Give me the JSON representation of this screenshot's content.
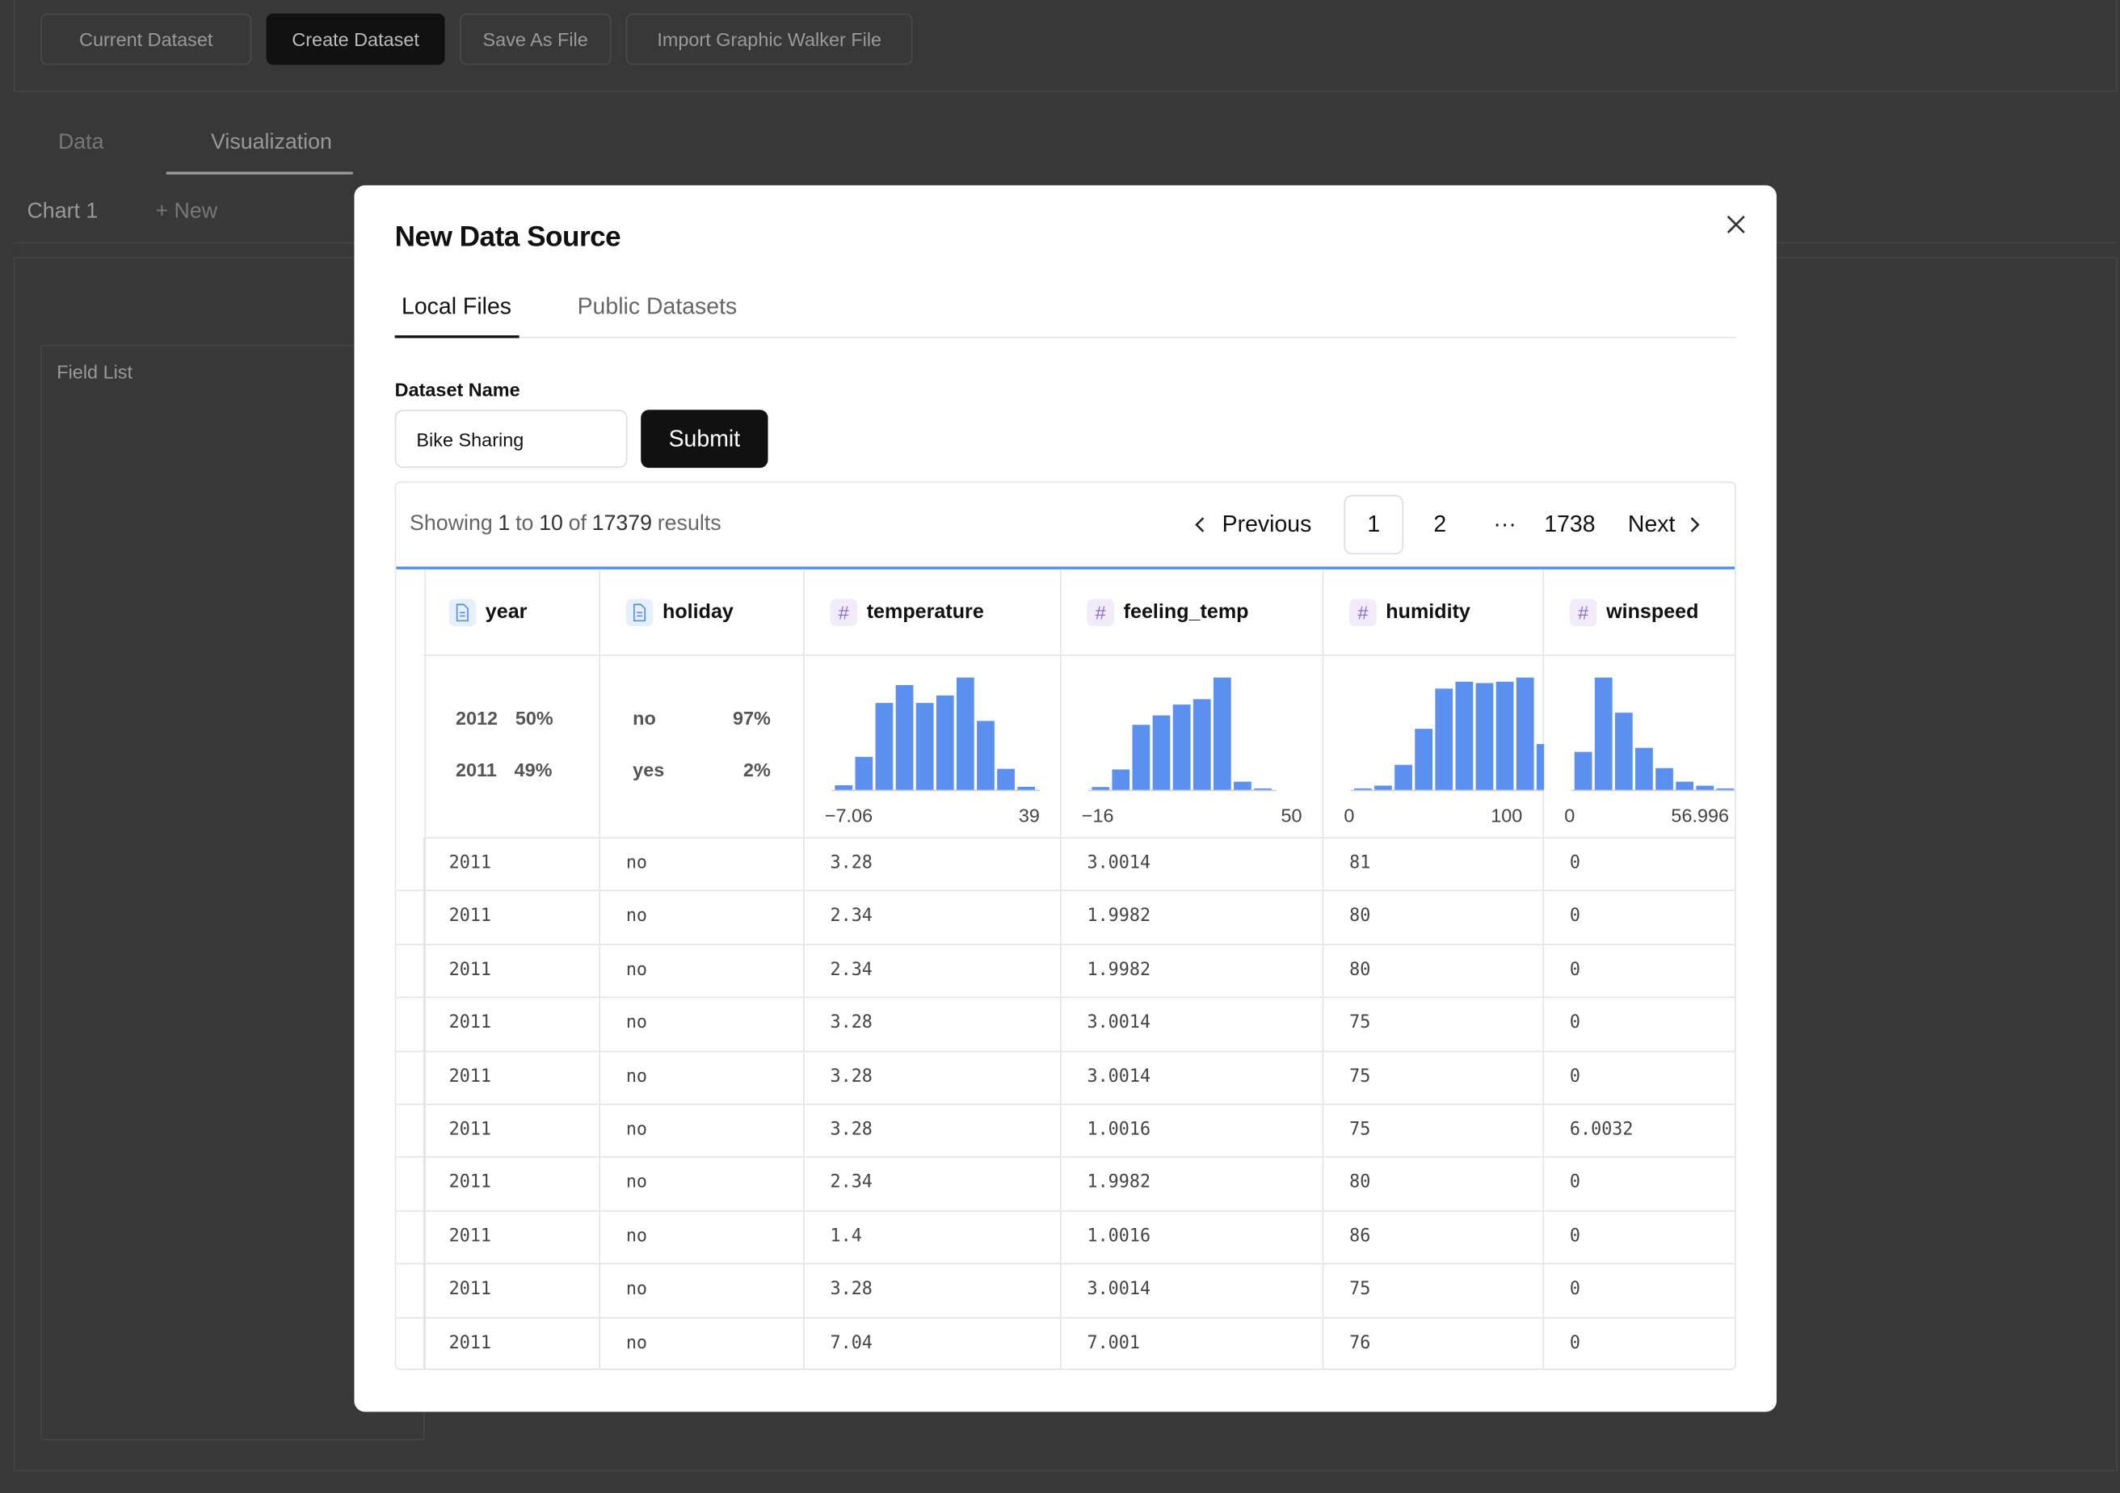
{
  "toolbar": {
    "buttons": [
      "Current Dataset",
      "Create Dataset",
      "Save As File",
      "Import Graphic Walker File"
    ]
  },
  "tabs": [
    "Data",
    "Visualization"
  ],
  "chart_tabs": {
    "chart": "Chart 1",
    "new": "+ New"
  },
  "field_list": "Field List",
  "modal": {
    "title": "New Data Source",
    "tabs": [
      "Local Files",
      "Public Datasets"
    ],
    "dataset_name_label": "Dataset Name",
    "dataset_name_value": "Bike Sharing",
    "submit": "Submit",
    "summary": [
      "Showing",
      "1",
      "to",
      "10",
      "of",
      "17379",
      "results"
    ],
    "pagination": {
      "previous": "Previous",
      "pages": [
        "1",
        "2",
        "···",
        "1738"
      ],
      "next": "Next"
    },
    "table": {
      "columns": [
        {
          "name": "year",
          "kind": "text",
          "stats": {
            "categories": [
              {
                "label": "2012",
                "share": "50%"
              },
              {
                "label": "2011",
                "share": "49%"
              }
            ]
          }
        },
        {
          "name": "holiday",
          "kind": "text",
          "stats": {
            "categories": [
              {
                "label": "no",
                "share": "97%"
              },
              {
                "label": "yes",
                "share": "2%"
              }
            ]
          }
        },
        {
          "name": "temperature",
          "kind": "number",
          "icon": "#",
          "stats": {
            "histogram": [
              3,
              22,
              58,
              70,
              58,
              63,
              75,
              46,
              14,
              2
            ],
            "min": "−7.06",
            "max": "39"
          }
        },
        {
          "name": "feeling_temp",
          "kind": "number",
          "icon": "#",
          "stats": {
            "histogram": [
              2,
              15,
              48,
              55,
              63,
              67,
              83,
              6,
              1
            ],
            "min": "−16",
            "max": "50"
          }
        },
        {
          "name": "humidity",
          "kind": "number",
          "icon": "#",
          "stats": {
            "histogram": [
              1,
              3,
              18,
              44,
              73,
              78,
              77,
              78,
              81,
              33
            ],
            "min": "0",
            "max": "100"
          }
        },
        {
          "name": "winspeed",
          "kind": "number",
          "icon": "#",
          "stats": {
            "histogram": [
              28,
              83,
              57,
              31,
              16,
              6,
              3,
              1
            ],
            "min": "0",
            "max": "56.996"
          }
        }
      ],
      "rows": [
        [
          "2011",
          "no",
          "3.28",
          "3.0014",
          "81",
          "0"
        ],
        [
          "2011",
          "no",
          "2.34",
          "1.9982",
          "80",
          "0"
        ],
        [
          "2011",
          "no",
          "2.34",
          "1.9982",
          "80",
          "0"
        ],
        [
          "2011",
          "no",
          "3.28",
          "3.0014",
          "75",
          "0"
        ],
        [
          "2011",
          "no",
          "3.28",
          "3.0014",
          "75",
          "0"
        ],
        [
          "2011",
          "no",
          "3.28",
          "1.0016",
          "75",
          "6.0032"
        ],
        [
          "2011",
          "no",
          "2.34",
          "1.9982",
          "80",
          "0"
        ],
        [
          "2011",
          "no",
          "1.4",
          "1.0016",
          "86",
          "0"
        ],
        [
          "2011",
          "no",
          "3.28",
          "3.0014",
          "75",
          "0"
        ],
        [
          "2011",
          "no",
          "7.04",
          "7.001",
          "76",
          "0"
        ]
      ]
    }
  }
}
